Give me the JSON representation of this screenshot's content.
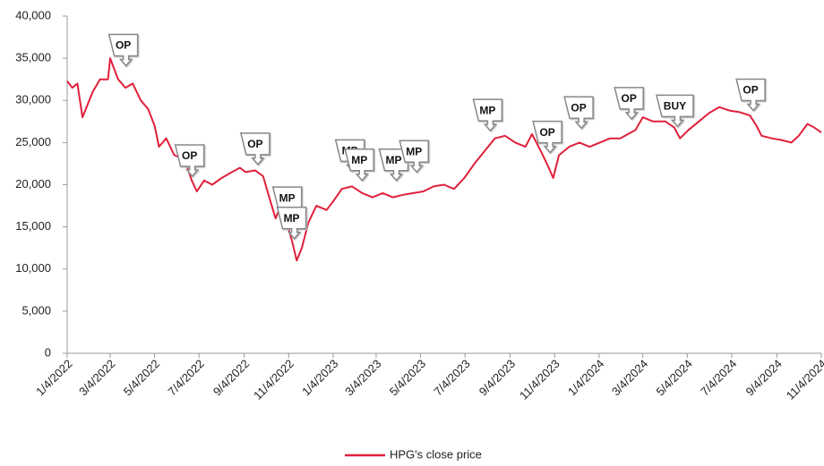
{
  "chart_data": {
    "type": "line",
    "x": [
      "1/4/2022",
      "1/11/2022",
      "1/18/2022",
      "1/25/2022",
      "2/8/2022",
      "2/18/2022",
      "3/1/2022",
      "3/4/2022",
      "3/15/2022",
      "3/25/2022",
      "4/4/2022",
      "4/15/2022",
      "4/25/2022",
      "5/4/2022",
      "5/10/2022",
      "5/20/2022",
      "5/31/2022",
      "6/14/2022",
      "6/24/2022",
      "7/1/2022",
      "7/11/2022",
      "7/22/2022",
      "8/4/2022",
      "8/18/2022",
      "8/29/2022",
      "9/6/2022",
      "9/19/2022",
      "9/30/2022",
      "10/10/2022",
      "10/17/2022",
      "10/24/2022",
      "11/1/2022",
      "11/8/2022",
      "11/15/2022",
      "11/22/2022",
      "12/1/2022",
      "12/12/2022",
      "12/26/2022",
      "1/4/2023",
      "1/16/2023",
      "1/30/2023",
      "2/13/2023",
      "2/27/2023",
      "3/13/2023",
      "3/27/2023",
      "4/10/2023",
      "4/24/2023",
      "5/8/2023",
      "5/22/2023",
      "6/5/2023",
      "6/19/2023",
      "7/3/2023",
      "7/17/2023",
      "7/31/2023",
      "8/14/2023",
      "8/28/2023",
      "9/11/2023",
      "9/25/2023",
      "10/4/2023",
      "10/16/2023",
      "10/27/2023",
      "11/2/2023",
      "11/10/2023",
      "11/24/2023",
      "12/8/2023",
      "12/22/2023",
      "1/5/2024",
      "1/19/2024",
      "2/2/2024",
      "2/23/2024",
      "3/4/2024",
      "3/18/2024",
      "4/4/2024",
      "4/16/2024",
      "4/24/2024",
      "5/6/2024",
      "5/20/2024",
      "6/3/2024",
      "6/17/2024",
      "7/1/2024",
      "7/15/2024",
      "7/29/2024",
      "8/7/2024",
      "8/14/2024",
      "8/28/2024",
      "9/10/2024",
      "9/24/2024",
      "10/4/2024",
      "10/16/2024",
      "10/25/2024",
      "11/4/2024"
    ],
    "series": [
      {
        "name": "HPG's close price",
        "color": "#e0203a",
        "values": [
          32300,
          31500,
          32000,
          28000,
          31000,
          32500,
          32500,
          35000,
          32500,
          31500,
          32000,
          30000,
          29000,
          27000,
          24500,
          25500,
          23500,
          23000,
          20500,
          19200,
          20500,
          20000,
          20800,
          21500,
          22000,
          21500,
          21700,
          21000,
          18000,
          16000,
          17500,
          15500,
          13500,
          11000,
          12500,
          15500,
          17500,
          17000,
          18000,
          19500,
          19800,
          19000,
          18500,
          19000,
          18500,
          18800,
          19000,
          19200,
          19800,
          20000,
          19500,
          20800,
          22500,
          24000,
          25500,
          25800,
          25000,
          24500,
          26000,
          24000,
          22000,
          20800,
          23500,
          24500,
          25000,
          24500,
          25000,
          25500,
          25500,
          26500,
          28000,
          27500,
          27500,
          26800,
          25500,
          26500,
          27500,
          28500,
          29200,
          28800,
          28600,
          28200,
          27000,
          25800,
          25500,
          25300,
          25000,
          25800,
          27200,
          26800,
          26200
        ]
      }
    ],
    "xlim": [
      "1/4/2022",
      "11/4/2024"
    ],
    "xticks": [
      "1/4/2022",
      "3/4/2022",
      "5/4/2022",
      "7/4/2022",
      "9/4/2022",
      "11/4/2022",
      "1/4/2023",
      "3/4/2023",
      "5/4/2023",
      "7/4/2023",
      "9/4/2023",
      "11/4/2023",
      "1/4/2024",
      "3/4/2024",
      "5/4/2024",
      "7/4/2024",
      "9/4/2024",
      "11/4/2024"
    ],
    "ylim": [
      0,
      40000
    ],
    "yticks": [
      0,
      {
        "value": 5000,
        "label": "5,000"
      },
      {
        "value": 10000,
        "label": "10,000"
      },
      {
        "value": 15000,
        "label": "15,000"
      },
      {
        "value": 20000,
        "label": "20,000"
      },
      {
        "value": 25000,
        "label": "25,000"
      },
      {
        "value": 30000,
        "label": "30,000"
      },
      {
        "value": 35000,
        "label": "35,000"
      },
      {
        "value": 40000,
        "label": "40,000"
      }
    ],
    "grid": false,
    "legend": "bottom",
    "annotations": [
      {
        "label": "OP",
        "x": "3/22/2022",
        "y": 34000
      },
      {
        "label": "OP",
        "x": "6/21/2022",
        "y": 20900
      },
      {
        "label": "OP",
        "x": "9/19/2022",
        "y": 22300
      },
      {
        "label": "MP",
        "x": "11/2/2022",
        "y": 15900
      },
      {
        "label": "MP",
        "x": "11/8/2022",
        "y": 13500
      },
      {
        "label": "MP",
        "x": "1/27/2023",
        "y": 21500
      },
      {
        "label": "MP",
        "x": "2/9/2023",
        "y": 20400
      },
      {
        "label": "MP",
        "x": "3/28/2023",
        "y": 20400
      },
      {
        "label": "MP",
        "x": "4/25/2023",
        "y": 21400
      },
      {
        "label": "MP",
        "x": "8/4/2023",
        "y": 26300
      },
      {
        "label": "OP",
        "x": "10/25/2023",
        "y": 23700
      },
      {
        "label": "OP",
        "x": "12/7/2023",
        "y": 26600
      },
      {
        "label": "OP",
        "x": "2/14/2024",
        "y": 27700
      },
      {
        "label": "BUY",
        "x": "4/17/2024",
        "y": 26800
      },
      {
        "label": "OP",
        "x": "7/30/2024",
        "y": 28700
      }
    ]
  }
}
